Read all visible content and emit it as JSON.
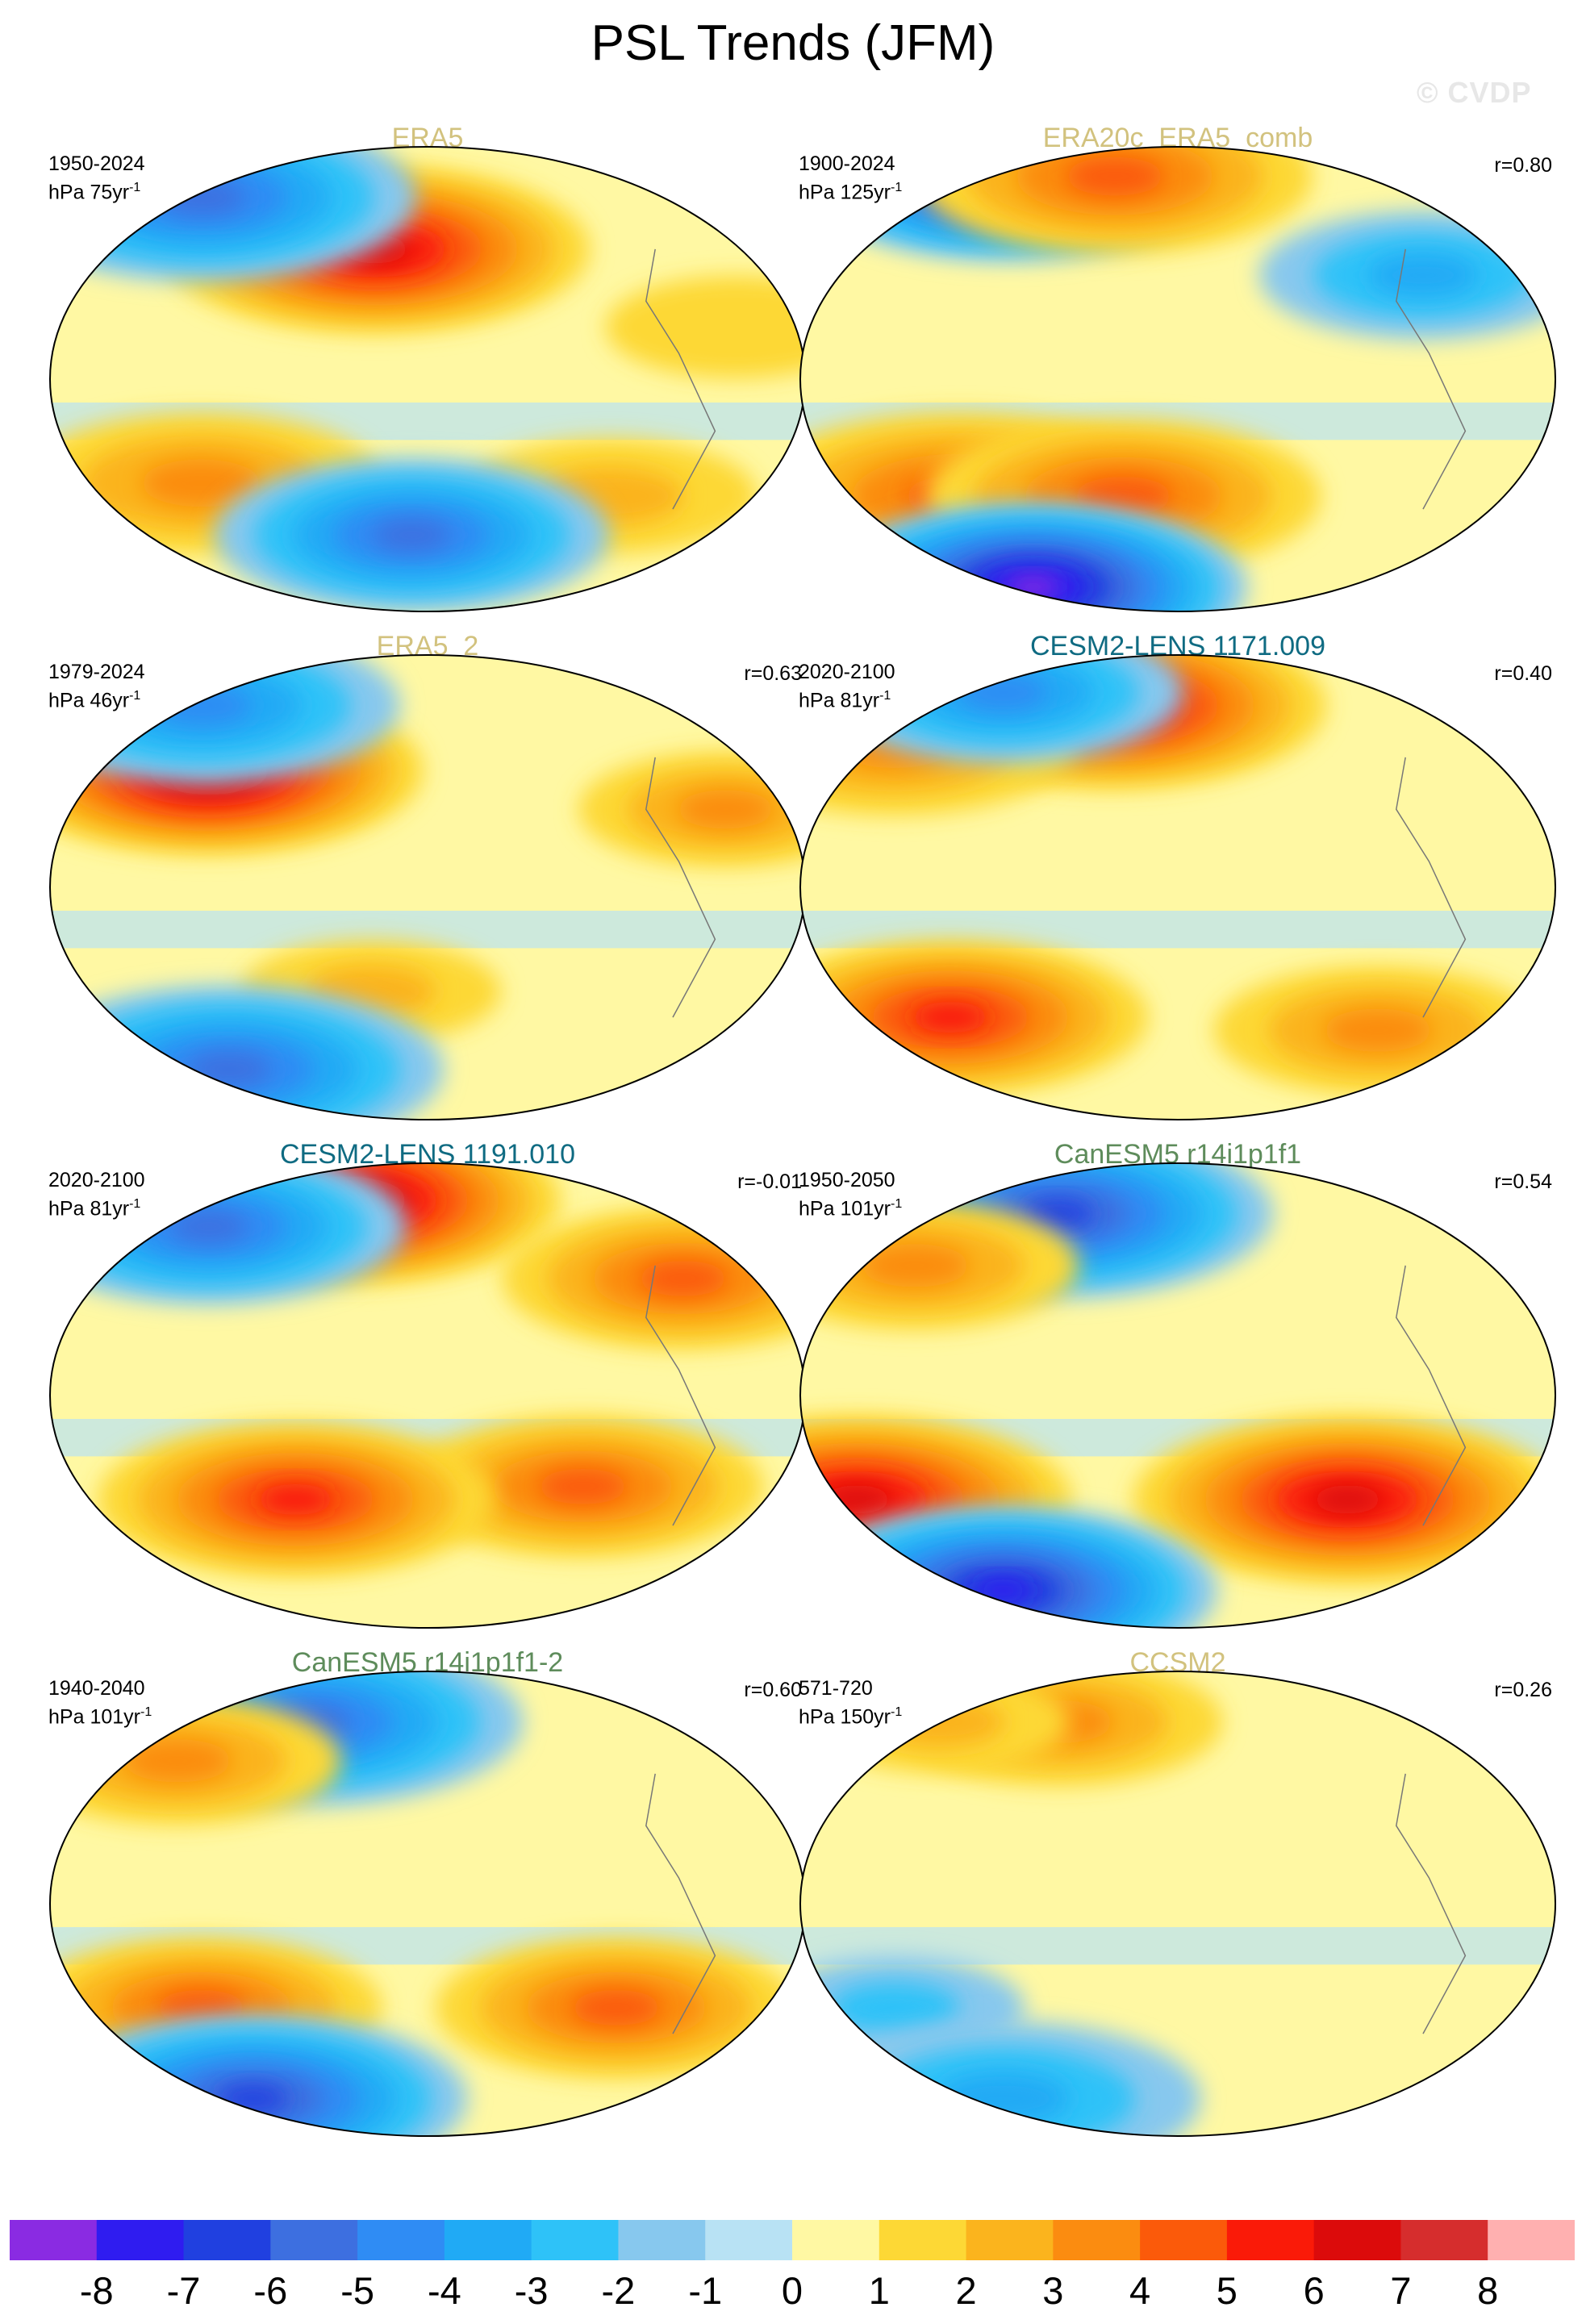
{
  "title": "PSL Trends (JFM)",
  "watermark": "© CVDP",
  "colorbar": {
    "colors": [
      "#8a2be2",
      "#2f1cf0",
      "#2040e0",
      "#3d6fe0",
      "#2f8cf4",
      "#20aaf5",
      "#2ec2f8",
      "#87c8ee",
      "#b8e2f4",
      "#fff8a3",
      "#fdd835",
      "#fbb41d",
      "#fb8c10",
      "#fb5a0a",
      "#fa1a08",
      "#dc0b0b",
      "#d62d2d",
      "#ffb0b0"
    ],
    "labels": [
      "-8",
      "-7",
      "-6",
      "-5",
      "-4",
      "-3",
      "-2",
      "-1",
      "0",
      "1",
      "2",
      "3",
      "4",
      "5",
      "6",
      "7",
      "8"
    ]
  },
  "panels": [
    {
      "title": "ERA5",
      "title_color": "#d2c27e",
      "period": "1950-2024",
      "units_prefix": "hPa ",
      "units_value": "75yr",
      "units_exp": "-1",
      "r": "",
      "features": [
        {
          "lon": 120,
          "lat": 50,
          "value": 6,
          "strength": 1.0
        },
        {
          "lon": -20,
          "lat": 70,
          "value": -5,
          "strength": 1.0
        },
        {
          "lon": 30,
          "lat": -40,
          "value": 3,
          "strength": 0.8
        },
        {
          "lon": -110,
          "lat": -45,
          "value": 2,
          "strength": 0.6
        },
        {
          "lon": -60,
          "lat": 20,
          "value": 1,
          "strength": 0.5
        },
        {
          "lon": 140,
          "lat": -60,
          "value": -5,
          "strength": 0.9
        }
      ]
    },
    {
      "title": "ERA20c_ERA5_comb",
      "title_color": "#d2c27e",
      "period": "1900-2024",
      "units_prefix": "hPa ",
      "units_value": "125yr",
      "units_exp": "-1",
      "r": "r=0.80",
      "features": [
        {
          "lon": -10,
          "lat": 78,
          "value": -8,
          "strength": 1.0
        },
        {
          "lon": 90,
          "lat": 78,
          "value": 4,
          "strength": 0.9
        },
        {
          "lon": 30,
          "lat": -45,
          "value": 4,
          "strength": 1.0
        },
        {
          "lon": 120,
          "lat": -45,
          "value": 4,
          "strength": 0.9
        },
        {
          "lon": -80,
          "lat": 40,
          "value": -3,
          "strength": 0.7
        },
        {
          "lon": 0,
          "lat": -80,
          "value": -8,
          "strength": 1.0
        }
      ]
    },
    {
      "title": "ERA5_2",
      "title_color": "#d2c27e",
      "period": "1979-2024",
      "units_prefix": "hPa ",
      "units_value": "46yr",
      "units_exp": "-1",
      "r": "r=0.63",
      "features": [
        {
          "lon": 30,
          "lat": 45,
          "value": 7,
          "strength": 1.0
        },
        {
          "lon": -20,
          "lat": 70,
          "value": -4,
          "strength": 0.9
        },
        {
          "lon": -60,
          "lat": 30,
          "value": 3,
          "strength": 0.6
        },
        {
          "lon": 120,
          "lat": -40,
          "value": 2,
          "strength": 0.5
        },
        {
          "lon": 0,
          "lat": -70,
          "value": -5,
          "strength": 1.0
        }
      ]
    },
    {
      "title": "CESM2-LENS 1171.009",
      "title_color": "#0f6b82",
      "period": "2020-2100",
      "units_prefix": "hPa ",
      "units_value": "81yr",
      "units_exp": "-1",
      "r": "r=0.40",
      "features": [
        {
          "lon": 100,
          "lat": 70,
          "value": 6,
          "strength": 1.0
        },
        {
          "lon": -20,
          "lat": 55,
          "value": 3,
          "strength": 0.8
        },
        {
          "lon": 20,
          "lat": -50,
          "value": 5,
          "strength": 0.9
        },
        {
          "lon": -90,
          "lat": -55,
          "value": 3,
          "strength": 0.7
        },
        {
          "lon": 0,
          "lat": 75,
          "value": -4,
          "strength": 0.8
        }
      ]
    },
    {
      "title": "CESM2-LENS 1191.010",
      "title_color": "#0f6b82",
      "period": "2020-2100",
      "units_prefix": "hPa ",
      "units_value": "81yr",
      "units_exp": "-1",
      "r": "r=-0.01",
      "features": [
        {
          "lon": 80,
          "lat": 75,
          "value": 7,
          "strength": 1.0
        },
        {
          "lon": 0,
          "lat": 65,
          "value": -5,
          "strength": 0.9
        },
        {
          "lon": -70,
          "lat": 45,
          "value": 4,
          "strength": 0.8
        },
        {
          "lon": -130,
          "lat": -35,
          "value": 4,
          "strength": 0.8
        },
        {
          "lon": 80,
          "lat": -40,
          "value": 5,
          "strength": 0.9
        }
      ]
    },
    {
      "title": "CanESM5 r14i1p1f1",
      "title_color": "#5e8c5b",
      "period": "1950-2050",
      "units_prefix": "hPa ",
      "units_value": "101yr",
      "units_exp": "-1",
      "r": "r=0.54",
      "features": [
        {
          "lon": 60,
          "lat": 70,
          "value": -6,
          "strength": 1.0
        },
        {
          "lon": 0,
          "lat": 50,
          "value": 3,
          "strength": 0.7
        },
        {
          "lon": -120,
          "lat": -40,
          "value": 6,
          "strength": 1.0
        },
        {
          "lon": -20,
          "lat": -40,
          "value": 6,
          "strength": 1.0
        },
        {
          "lon": 0,
          "lat": -75,
          "value": -7,
          "strength": 1.0
        }
      ]
    },
    {
      "title": "CanESM5 r14i1p1f1-2",
      "title_color": "#5e8c5b",
      "period": "1940-2040",
      "units_prefix": "hPa ",
      "units_value": "101yr",
      "units_exp": "-1",
      "r": "r=0.60",
      "features": [
        {
          "lon": 60,
          "lat": 70,
          "value": -5,
          "strength": 1.0
        },
        {
          "lon": 0,
          "lat": 55,
          "value": 3,
          "strength": 0.7
        },
        {
          "lon": -110,
          "lat": -40,
          "value": 4,
          "strength": 0.8
        },
        {
          "lon": 30,
          "lat": -40,
          "value": 4,
          "strength": 0.8
        },
        {
          "lon": 0,
          "lat": -75,
          "value": -6,
          "strength": 1.0
        }
      ]
    },
    {
      "title": "CCSM2",
      "title_color": "#d2c27e",
      "period": "571-720",
      "units_prefix": "hPa ",
      "units_value": "150yr",
      "units_exp": "-1",
      "r": "r=0.26",
      "features": [
        {
          "lon": 60,
          "lat": 70,
          "value": 3,
          "strength": 0.7
        },
        {
          "lon": -30,
          "lat": 70,
          "value": 2,
          "strength": 0.5
        },
        {
          "lon": 0,
          "lat": -40,
          "value": -2,
          "strength": 0.5
        },
        {
          "lon": 0,
          "lat": -75,
          "value": -3,
          "strength": 0.9
        }
      ]
    }
  ]
}
